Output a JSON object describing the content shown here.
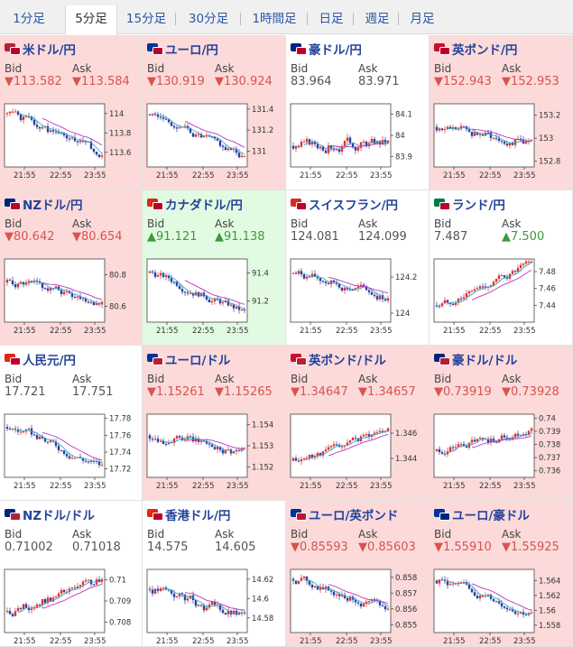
{
  "tabs": [
    {
      "label": "1分足",
      "active": false
    },
    {
      "label": "5分足",
      "active": true
    },
    {
      "label": "15分足",
      "active": false
    },
    {
      "label": "30分足",
      "active": false
    },
    {
      "label": "1時間足",
      "active": false
    },
    {
      "label": "日足",
      "active": false
    },
    {
      "label": "週足",
      "active": false
    },
    {
      "label": "月足",
      "active": false
    }
  ],
  "bid_label": "Bid",
  "ask_label": "Ask",
  "colors": {
    "down_bg": "#fcdada",
    "up_bg": "#e2fae2",
    "down_text": "#d9534f",
    "up_text": "#3c9a3c",
    "bull_candle": "#e03030",
    "bear_candle": "#2b3fa0",
    "ma_fast": "#30b0c8",
    "ma_slow": "#c030c0"
  },
  "pairs": [
    {
      "name": "米ドル/円",
      "flags": [
        "#b22234",
        "#bc002d"
      ],
      "state": "down",
      "bid": "▼113.582",
      "ask": "▼113.584",
      "chart_data": {
        "type": "candlestick",
        "x_ticks": [
          "21:55",
          "22:55",
          "23:55"
        ],
        "y_ticks": [
          "114",
          "113.8",
          "113.6"
        ],
        "ylim": [
          113.45,
          114.1
        ],
        "start": 114.0,
        "end": 113.55,
        "vol": 0.55,
        "seed": 1
      }
    },
    {
      "name": "ユーロ/円",
      "flags": [
        "#003399",
        "#bc002d"
      ],
      "state": "down",
      "bid": "▼130.919",
      "ask": "▼130.924",
      "chart_data": {
        "type": "candlestick",
        "x_ticks": [
          "21:55",
          "22:55",
          "23:55"
        ],
        "y_ticks": [
          "131.4",
          "131.2",
          "131"
        ],
        "ylim": [
          130.85,
          131.45
        ],
        "start": 131.35,
        "end": 130.92,
        "vol": 0.5,
        "seed": 2
      }
    },
    {
      "name": "豪ドル/円",
      "flags": [
        "#00247d",
        "#bc002d"
      ],
      "state": "flat",
      "bid": "83.964",
      "ask": "83.971",
      "chart_data": {
        "type": "candlestick",
        "x_ticks": [
          "21:55",
          "22:55",
          "23:55"
        ],
        "y_ticks": [
          "84.1",
          "84",
          "83.9"
        ],
        "ylim": [
          83.85,
          84.15
        ],
        "start": 83.95,
        "end": 83.97,
        "vol": 0.7,
        "seed": 3
      }
    },
    {
      "name": "英ポンド/円",
      "flags": [
        "#c8102e",
        "#bc002d"
      ],
      "state": "down",
      "bid": "▼152.943",
      "ask": "▼152.953",
      "chart_data": {
        "type": "candlestick",
        "x_ticks": [
          "21:55",
          "22:55",
          "23:55"
        ],
        "y_ticks": [
          "153.2",
          "153",
          "152.8"
        ],
        "ylim": [
          152.75,
          153.3
        ],
        "start": 153.1,
        "end": 152.95,
        "vol": 0.6,
        "seed": 4
      }
    },
    {
      "name": "NZドル/円",
      "flags": [
        "#00247d",
        "#bc002d"
      ],
      "state": "down",
      "bid": "▼80.642",
      "ask": "▼80.654",
      "chart_data": {
        "type": "candlestick",
        "x_ticks": [
          "21:55",
          "22:55",
          "23:55"
        ],
        "y_ticks": [
          "80.8",
          "80.6"
        ],
        "ylim": [
          80.5,
          80.9
        ],
        "start": 80.75,
        "end": 80.63,
        "vol": 0.55,
        "seed": 5
      }
    },
    {
      "name": "カナダドル/円",
      "flags": [
        "#d52b1e",
        "#bc002d"
      ],
      "state": "up",
      "bid": "▲91.121",
      "ask": "▲91.138",
      "chart_data": {
        "type": "candlestick",
        "x_ticks": [
          "21:55",
          "22:55",
          "23:55"
        ],
        "y_ticks": [
          "91.4",
          "91.2"
        ],
        "ylim": [
          91.05,
          91.5
        ],
        "start": 91.4,
        "end": 91.1,
        "vol": 0.5,
        "seed": 6
      }
    },
    {
      "name": "スイスフラン/円",
      "flags": [
        "#d52b1e",
        "#bc002d"
      ],
      "state": "flat",
      "bid": "124.081",
      "ask": "124.099",
      "chart_data": {
        "type": "candlestick",
        "x_ticks": [
          "21:55",
          "22:55",
          "23:55"
        ],
        "y_ticks": [
          "124.2",
          "124"
        ],
        "ylim": [
          123.95,
          124.3
        ],
        "start": 124.22,
        "end": 124.08,
        "vol": 0.6,
        "seed": 7
      }
    },
    {
      "name": "ランド/円",
      "flags": [
        "#007a4d",
        "#bc002d"
      ],
      "state": "flat",
      "bid": "7.487",
      "ask": "▲7.500",
      "chart_data": {
        "type": "candlestick",
        "x_ticks": [
          "21:55",
          "22:55",
          "23:55"
        ],
        "y_ticks": [
          "7.48",
          "7.46",
          "7.44"
        ],
        "ylim": [
          7.42,
          7.495
        ],
        "start": 7.44,
        "end": 7.49,
        "vol": 0.5,
        "seed": 8
      }
    },
    {
      "name": "人民元/円",
      "flags": [
        "#de2910",
        "#bc002d"
      ],
      "state": "flat",
      "bid": "17.721",
      "ask": "17.751",
      "chart_data": {
        "type": "candlestick",
        "x_ticks": [
          "21:55",
          "22:55",
          "23:55"
        ],
        "y_ticks": [
          "17.78",
          "17.76",
          "17.74",
          "17.72"
        ],
        "ylim": [
          17.71,
          17.785
        ],
        "start": 17.77,
        "end": 17.72,
        "vol": 0.5,
        "seed": 9
      }
    },
    {
      "name": "ユーロ/ドル",
      "flags": [
        "#003399",
        "#b22234"
      ],
      "state": "down",
      "bid": "▼1.15261",
      "ask": "▼1.15265",
      "chart_data": {
        "type": "candlestick",
        "x_ticks": [
          "21:55",
          "22:55",
          "23:55"
        ],
        "y_ticks": [
          "1.154",
          "1.153",
          "1.152"
        ],
        "ylim": [
          1.1515,
          1.1545
        ],
        "start": 1.1535,
        "end": 1.1527,
        "vol": 0.6,
        "seed": 10
      }
    },
    {
      "name": "英ポンド/ドル",
      "flags": [
        "#c8102e",
        "#b22234"
      ],
      "state": "down",
      "bid": "▼1.34647",
      "ask": "▼1.34657",
      "chart_data": {
        "type": "candlestick",
        "x_ticks": [
          "21:55",
          "22:55",
          "23:55"
        ],
        "y_ticks": [
          "1.346",
          "1.344"
        ],
        "ylim": [
          1.3425,
          1.3475
        ],
        "start": 1.3438,
        "end": 1.3465,
        "vol": 0.5,
        "seed": 11
      }
    },
    {
      "name": "豪ドル/ドル",
      "flags": [
        "#00247d",
        "#b22234"
      ],
      "state": "down",
      "bid": "▼0.73919",
      "ask": "▼0.73928",
      "chart_data": {
        "type": "candlestick",
        "x_ticks": [
          "21:55",
          "22:55",
          "23:55"
        ],
        "y_ticks": [
          "0.74",
          "0.739",
          "0.738",
          "0.737",
          "0.736"
        ],
        "ylim": [
          0.7355,
          0.7403
        ],
        "start": 0.7375,
        "end": 0.7392,
        "vol": 0.55,
        "seed": 12
      }
    },
    {
      "name": "NZドル/ドル",
      "flags": [
        "#00247d",
        "#b22234"
      ],
      "state": "flat",
      "bid": "0.71002",
      "ask": "0.71018",
      "chart_data": {
        "type": "candlestick",
        "x_ticks": [
          "21:55",
          "22:55",
          "23:55"
        ],
        "y_ticks": [
          "0.71",
          "0.709",
          "0.708"
        ],
        "ylim": [
          0.7075,
          0.7105
        ],
        "start": 0.7085,
        "end": 0.71,
        "vol": 0.6,
        "seed": 13
      }
    },
    {
      "name": "香港ドル/円",
      "flags": [
        "#de2910",
        "#bc002d"
      ],
      "state": "flat",
      "bid": "14.575",
      "ask": "14.605",
      "chart_data": {
        "type": "candlestick",
        "x_ticks": [
          "21:55",
          "22:55",
          "23:55"
        ],
        "y_ticks": [
          "14.62",
          "14.6",
          "14.58"
        ],
        "ylim": [
          14.565,
          14.63
        ],
        "start": 14.61,
        "end": 14.578,
        "vol": 0.65,
        "seed": 14
      }
    },
    {
      "name": "ユーロ/英ポンド",
      "flags": [
        "#003399",
        "#c8102e"
      ],
      "state": "down",
      "bid": "▼0.85593",
      "ask": "▼0.85603",
      "chart_data": {
        "type": "candlestick",
        "x_ticks": [
          "21:55",
          "22:55",
          "23:55"
        ],
        "y_ticks": [
          "0.858",
          "0.857",
          "0.856",
          "0.855"
        ],
        "ylim": [
          0.8545,
          0.8585
        ],
        "start": 0.8579,
        "end": 0.8558,
        "vol": 0.5,
        "seed": 15
      }
    },
    {
      "name": "ユーロ/豪ドル",
      "flags": [
        "#003399",
        "#00247d"
      ],
      "state": "down",
      "bid": "▼1.55910",
      "ask": "▼1.55925",
      "chart_data": {
        "type": "candlestick",
        "x_ticks": [
          "21:55",
          "22:55",
          "23:55"
        ],
        "y_ticks": [
          "1.564",
          "1.562",
          "1.56",
          "1.558"
        ],
        "ylim": [
          1.557,
          1.5655
        ],
        "start": 1.564,
        "end": 1.5592,
        "vol": 0.5,
        "seed": 16
      }
    }
  ]
}
